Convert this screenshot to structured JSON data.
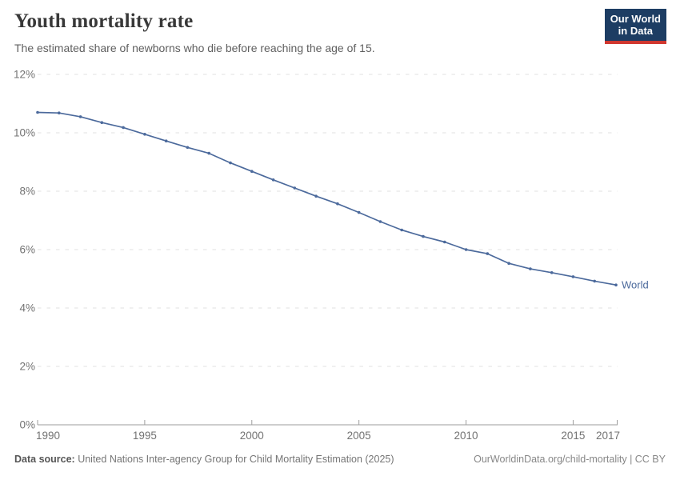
{
  "header": {
    "title": "Youth mortality rate",
    "subtitle": "The estimated share of newborns who die before reaching the age of 15.",
    "logo": {
      "line1": "Our World",
      "line2": "in Data",
      "bg_color": "#1d3d63",
      "stripe_color": "#d0372f"
    }
  },
  "chart_data": {
    "type": "line",
    "title": "Youth mortality rate",
    "xlabel": "",
    "ylabel": "",
    "xlim": [
      1990,
      2017
    ],
    "ylim": [
      0,
      12
    ],
    "x_ticks": [
      1990,
      1995,
      2000,
      2005,
      2010,
      2015,
      2017
    ],
    "y_ticks": [
      0,
      2,
      4,
      6,
      8,
      10,
      12
    ],
    "y_tick_suffix": "%",
    "grid": "horizontal dashed",
    "legend_position": "end-of-line label",
    "x": [
      1990,
      1991,
      1992,
      1993,
      1994,
      1995,
      1996,
      1997,
      1998,
      1999,
      2000,
      2001,
      2002,
      2003,
      2004,
      2005,
      2006,
      2007,
      2008,
      2009,
      2010,
      2011,
      2012,
      2013,
      2014,
      2015,
      2016,
      2017
    ],
    "series": [
      {
        "name": "World",
        "color": "#4C6A9C",
        "values": [
          10.7,
          10.68,
          10.55,
          10.35,
          10.18,
          9.95,
          9.72,
          9.5,
          9.3,
          8.97,
          8.68,
          8.39,
          8.11,
          7.83,
          7.57,
          7.27,
          6.96,
          6.67,
          6.45,
          6.26,
          6.0,
          5.86,
          5.53,
          5.34,
          5.21,
          5.07,
          4.92,
          4.79
        ]
      }
    ]
  },
  "footer": {
    "source_label": "Data source:",
    "source_text": " United Nations Inter-agency Group for Child Mortality Estimation (2025)",
    "link_text": "OurWorldinData.org/child-mortality | CC BY"
  },
  "colors": {
    "line": "#4C6A9C",
    "grid": "#e0e0e0",
    "axis": "#9e9e9e",
    "tick_text": "#737373"
  }
}
